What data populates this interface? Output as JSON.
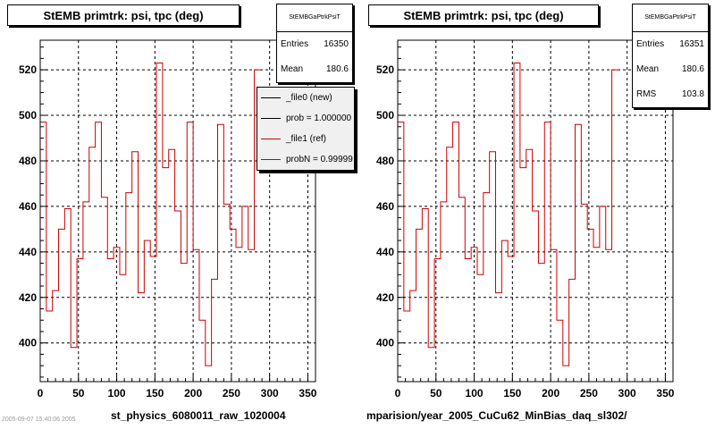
{
  "colors": {
    "ref_line": "#cc0000",
    "new_line": "#000000",
    "legend_bg": "#f0f0f0",
    "frame": "#000000"
  },
  "left_pad": {
    "stats": {
      "name": "StEMBGaPtrkPsiT",
      "entries_label": "Entries",
      "entries": "16350",
      "mean_label": "Mean",
      "mean": "180.6"
    },
    "legend": [
      {
        "label": "_file0 (new)",
        "color": "#000000"
      },
      {
        "label": "prob = 1.000000",
        "color": "#000000"
      },
      {
        "label": "_file1 (ref)",
        "color": "#cc0000"
      },
      {
        "label": "probN = 0.99999",
        "color": "#cc0000"
      }
    ],
    "file_label": "st_physics_6080011_raw_1020004"
  },
  "right_pad": {
    "stats": {
      "name": "StEMBGaPtrkPsiT",
      "entries_label": "Entries",
      "entries": "16351",
      "mean_label": "Mean",
      "mean": "180.6",
      "rms_label": "RMS",
      "rms": "103.8"
    },
    "file_label": "mparision/year_2005_CuCu62_MinBias_daq_sl302/"
  },
  "footer": "2005-09-07 15:40:06 2005",
  "chart_data": [
    {
      "type": "line",
      "step": true,
      "title": "StEMB primtrk: psi, tpc (deg)",
      "xlim": [
        0,
        360
      ],
      "ylim": [
        383,
        533
      ],
      "xticks": [
        0,
        50,
        100,
        150,
        200,
        250,
        300,
        350
      ],
      "yticks": [
        400,
        420,
        440,
        460,
        480,
        500,
        520
      ],
      "grid": true,
      "bin_width": 8,
      "series": [
        {
          "name": "_file1 (ref)",
          "color": "#cc0000",
          "values": [
            497,
            414,
            423,
            450,
            459,
            398,
            437,
            462,
            486,
            497,
            464,
            437,
            442,
            430,
            466,
            484,
            422,
            445,
            438,
            523,
            477,
            485,
            458,
            435,
            497,
            441,
            410,
            390,
            428,
            496,
            461,
            450,
            442,
            460,
            441,
            520
          ]
        }
      ]
    },
    {
      "type": "line",
      "step": true,
      "title": "StEMB primtrk: psi, tpc (deg)",
      "xlim": [
        0,
        360
      ],
      "ylim": [
        383,
        533
      ],
      "xticks": [
        0,
        50,
        100,
        150,
        200,
        250,
        300,
        350
      ],
      "yticks": [
        400,
        420,
        440,
        460,
        480,
        500,
        520
      ],
      "grid": true,
      "bin_width": 8,
      "series": [
        {
          "name": "_file1 (ref)",
          "color": "#cc0000",
          "values": [
            497,
            414,
            423,
            450,
            459,
            398,
            437,
            462,
            486,
            497,
            464,
            437,
            442,
            430,
            466,
            484,
            422,
            445,
            438,
            523,
            477,
            485,
            458,
            435,
            497,
            441,
            410,
            390,
            428,
            496,
            461,
            450,
            442,
            460,
            441,
            520
          ]
        }
      ]
    }
  ]
}
